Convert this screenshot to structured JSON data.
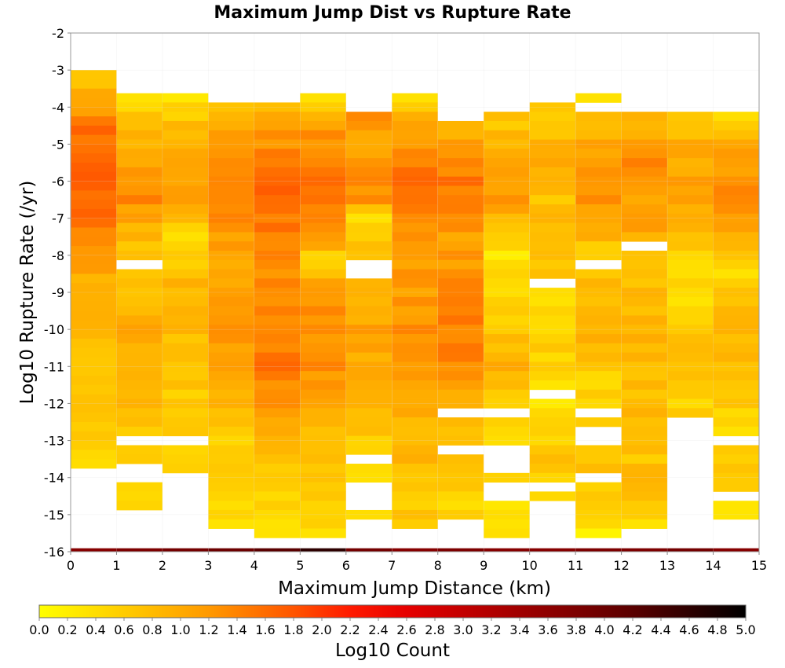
{
  "chart_data": {
    "type": "heatmap",
    "title": "Maximum Jump Dist vs Rupture Rate",
    "xlabel": "Maximum Jump Distance (km)",
    "ylabel": "Log10 Rupture Rate (/yr)",
    "colorbar_label": "Log10 Count",
    "xlim": [
      0,
      15
    ],
    "ylim": [
      -16,
      -2
    ],
    "clim": [
      0,
      5
    ],
    "x_ticks": [
      "0",
      "1",
      "2",
      "3",
      "4",
      "5",
      "6",
      "7",
      "8",
      "9",
      "10",
      "11",
      "12",
      "13",
      "14",
      "15"
    ],
    "y_ticks": [
      "-2",
      "-3",
      "-4",
      "-5",
      "-6",
      "-7",
      "-8",
      "-9",
      "-10",
      "-11",
      "-12",
      "-13",
      "-14",
      "-15",
      "-16"
    ],
    "colorbar_ticks": [
      "0.0",
      "0.2",
      "0.4",
      "0.6",
      "0.8",
      "1.0",
      "1.2",
      "1.4",
      "1.6",
      "1.8",
      "2.0",
      "2.2",
      "2.4",
      "2.6",
      "2.8",
      "3.0",
      "3.2",
      "3.4",
      "3.6",
      "3.8",
      "4.0",
      "4.2",
      "4.4",
      "4.6",
      "4.8",
      "5.0"
    ],
    "colormap": [
      {
        "v": 0.0,
        "color": "#ffff00"
      },
      {
        "v": 0.6,
        "color": "#ffcc00"
      },
      {
        "v": 1.2,
        "color": "#ff9900"
      },
      {
        "v": 1.8,
        "color": "#ff5500"
      },
      {
        "v": 2.2,
        "color": "#ff1a00"
      },
      {
        "v": 2.6,
        "color": "#e60000"
      },
      {
        "v": 3.4,
        "color": "#a00000"
      },
      {
        "v": 4.2,
        "color": "#5a0000"
      },
      {
        "v": 5.0,
        "color": "#000000"
      }
    ],
    "x_bin_width": 1,
    "y_bin_height": 0.25,
    "y_bottom": -16,
    "bottom_row": {
      "y": -15.95,
      "values": [
        3.7,
        3.8,
        3.9,
        4.0,
        4.2,
        4.6,
        3.9,
        3.7,
        3.8,
        3.7,
        3.7,
        3.8,
        3.8,
        3.9,
        3.7
      ]
    },
    "columns": [
      {
        "top": -3.0,
        "bottom": -13.625,
        "holes": [
          [
            -14.5,
            -16.0
          ]
        ],
        "profile": [
          [
            -3.0,
            0.6
          ],
          [
            -4.5,
            1.5
          ],
          [
            -5.5,
            1.8
          ],
          [
            -7.0,
            1.5
          ],
          [
            -8.5,
            1.0
          ],
          [
            -10.0,
            0.8
          ],
          [
            -12.0,
            0.7
          ],
          [
            -13.5,
            0.6
          ],
          [
            -14.5,
            0.4
          ]
        ]
      },
      {
        "top": -3.625,
        "bottom": -14.875,
        "holes": [
          [
            -8.125,
            -8.375
          ],
          [
            -12.875,
            -13.125
          ],
          [
            -13.625,
            -14.125
          ],
          [
            -15.0,
            -16.0
          ]
        ],
        "profile": [
          [
            -3.6,
            0.3
          ],
          [
            -5.0,
            0.9
          ],
          [
            -6.5,
            1.3
          ],
          [
            -8.0,
            0.6
          ],
          [
            -10.0,
            1.0
          ],
          [
            -12.0,
            0.8
          ],
          [
            -14.0,
            0.4
          ],
          [
            -15.0,
            0.5
          ]
        ]
      },
      {
        "top": -3.625,
        "bottom": -13.875,
        "holes": [
          [
            -12.875,
            -13.125
          ],
          [
            -13.875,
            -16.0
          ]
        ],
        "profile": [
          [
            -3.6,
            0.3
          ],
          [
            -5.0,
            1.0
          ],
          [
            -6.5,
            1.2
          ],
          [
            -7.5,
            0.5
          ],
          [
            -9.0,
            0.9
          ],
          [
            -11.0,
            0.6
          ],
          [
            -12.5,
            0.7
          ],
          [
            -13.8,
            0.4
          ]
        ]
      },
      {
        "top": -3.875,
        "bottom": -15.375,
        "holes": [
          [
            -15.375,
            -16.0
          ]
        ],
        "profile": [
          [
            -3.9,
            0.8
          ],
          [
            -5.0,
            1.2
          ],
          [
            -6.5,
            1.5
          ],
          [
            -8.0,
            1.0
          ],
          [
            -10.0,
            1.2
          ],
          [
            -11.5,
            1.1
          ],
          [
            -13.0,
            0.5
          ],
          [
            -14.5,
            0.5
          ],
          [
            -15.3,
            0.4
          ]
        ]
      },
      {
        "top": -3.875,
        "bottom": -15.625,
        "holes": [
          [
            -15.625,
            -16.0
          ]
        ],
        "profile": [
          [
            -3.9,
            0.7
          ],
          [
            -5.0,
            1.3
          ],
          [
            -6.0,
            1.7
          ],
          [
            -7.5,
            1.4
          ],
          [
            -9.0,
            1.3
          ],
          [
            -11.0,
            1.5
          ],
          [
            -12.5,
            1.0
          ],
          [
            -14.0,
            0.6
          ],
          [
            -15.5,
            0.3
          ]
        ]
      },
      {
        "top": -3.625,
        "bottom": -15.875,
        "holes": [],
        "profile": [
          [
            -3.6,
            0.2
          ],
          [
            -4.5,
            1.1
          ],
          [
            -6.0,
            1.7
          ],
          [
            -7.5,
            1.2
          ],
          [
            -8.2,
            0.4
          ],
          [
            -9.0,
            1.2
          ],
          [
            -11.0,
            1.3
          ],
          [
            -12.5,
            0.8
          ],
          [
            -14.5,
            0.7
          ],
          [
            -15.8,
            0.3
          ]
        ]
      },
      {
        "top": -3.875,
        "bottom": -15.875,
        "holes": [
          [
            -4.0,
            -4.125
          ],
          [
            -8.125,
            -8.625
          ],
          [
            -13.5,
            -13.625
          ],
          [
            -14.125,
            -14.875
          ],
          [
            -15.125,
            -15.625
          ]
        ],
        "profile": [
          [
            -3.9,
            1.3
          ],
          [
            -5.0,
            1.1
          ],
          [
            -6.5,
            1.3
          ],
          [
            -7.0,
            0.3
          ],
          [
            -8.0,
            0.8
          ],
          [
            -10.0,
            1.1
          ],
          [
            -12.0,
            0.8
          ],
          [
            -13.0,
            0.6
          ],
          [
            -14.0,
            0.5
          ],
          [
            -15.0,
            0.5
          ],
          [
            -15.8,
            0.4
          ]
        ]
      },
      {
        "top": -3.625,
        "bottom": -15.875,
        "holes": [
          [
            -15.375,
            -15.625
          ]
        ],
        "profile": [
          [
            -3.6,
            0.2
          ],
          [
            -4.5,
            1.0
          ],
          [
            -6.0,
            1.6
          ],
          [
            -7.5,
            1.2
          ],
          [
            -9.0,
            1.1
          ],
          [
            -10.5,
            1.4
          ],
          [
            -12.0,
            1.0
          ],
          [
            -13.5,
            0.8
          ],
          [
            -15.0,
            0.6
          ],
          [
            -15.8,
            0.4
          ]
        ]
      },
      {
        "top": -4.375,
        "bottom": -15.125,
        "holes": [
          [
            -12.125,
            -12.375
          ],
          [
            -13.125,
            -13.375
          ],
          [
            -15.125,
            -16.0
          ]
        ],
        "profile": [
          [
            -4.4,
            0.9
          ],
          [
            -6.0,
            1.5
          ],
          [
            -7.5,
            1.1
          ],
          [
            -9.0,
            1.3
          ],
          [
            -10.5,
            1.5
          ],
          [
            -12.0,
            0.9
          ],
          [
            -13.5,
            0.6
          ],
          [
            -15.0,
            0.5
          ]
        ]
      },
      {
        "top": -4.125,
        "bottom": -15.875,
        "holes": [
          [
            -12.125,
            -12.375
          ],
          [
            -13.125,
            -13.875
          ],
          [
            -14.125,
            -14.625
          ]
        ],
        "profile": [
          [
            -4.1,
            0.6
          ],
          [
            -5.5,
            1.0
          ],
          [
            -6.5,
            1.2
          ],
          [
            -8.0,
            0.3
          ],
          [
            -9.0,
            0.5
          ],
          [
            -11.0,
            0.9
          ],
          [
            -12.5,
            0.4
          ],
          [
            -14.0,
            0.4
          ],
          [
            -15.0,
            0.4
          ],
          [
            -15.8,
            0.2
          ]
        ]
      },
      {
        "top": -3.875,
        "bottom": -14.625,
        "holes": [
          [
            -8.625,
            -8.875
          ],
          [
            -11.625,
            -11.875
          ],
          [
            -14.125,
            -14.375
          ],
          [
            -14.625,
            -16.0
          ]
        ],
        "profile": [
          [
            -3.9,
            0.5
          ],
          [
            -5.5,
            1.0
          ],
          [
            -6.5,
            0.7
          ],
          [
            -7.5,
            0.9
          ],
          [
            -9.0,
            0.5
          ],
          [
            -10.5,
            0.6
          ],
          [
            -12.0,
            0.4
          ],
          [
            -13.5,
            0.7
          ],
          [
            -14.5,
            0.5
          ]
        ]
      },
      {
        "top": -3.625,
        "bottom": -15.375,
        "holes": [
          [
            -3.875,
            -4.0
          ],
          [
            -8.125,
            -8.375
          ],
          [
            -12.125,
            -12.375
          ],
          [
            -12.625,
            -13.125
          ],
          [
            -13.875,
            -14.125
          ]
        ],
        "profile": [
          [
            -3.6,
            0.4
          ],
          [
            -5.0,
            1.0
          ],
          [
            -6.5,
            1.3
          ],
          [
            -8.0,
            0.6
          ],
          [
            -10.0,
            1.0
          ],
          [
            -11.5,
            0.5
          ],
          [
            -12.5,
            0.7
          ],
          [
            -14.5,
            0.6
          ],
          [
            -15.3,
            0.3
          ]
        ]
      },
      {
        "top": -4.125,
        "bottom": -15.625,
        "holes": [
          [
            -7.625,
            -7.875
          ],
          [
            -15.375,
            -15.625
          ]
        ],
        "profile": [
          [
            -4.1,
            0.8
          ],
          [
            -5.5,
            1.3
          ],
          [
            -7.0,
            1.1
          ],
          [
            -8.5,
            0.7
          ],
          [
            -10.0,
            0.9
          ],
          [
            -12.0,
            0.8
          ],
          [
            -13.5,
            0.7
          ],
          [
            -14.5,
            0.8
          ],
          [
            -15.2,
            0.5
          ]
        ]
      },
      {
        "top": -4.125,
        "bottom": -12.375,
        "holes": [
          [
            -12.375,
            -16.0
          ]
        ],
        "profile": [
          [
            -4.1,
            0.6
          ],
          [
            -5.0,
            0.9
          ],
          [
            -6.5,
            1.2
          ],
          [
            -7.5,
            0.7
          ],
          [
            -9.0,
            0.4
          ],
          [
            -10.5,
            0.8
          ],
          [
            -12.0,
            0.5
          ]
        ]
      },
      {
        "top": -4.125,
        "bottom": -15.875,
        "holes": [
          [
            -12.875,
            -13.125
          ],
          [
            -14.375,
            -14.625
          ],
          [
            -15.125,
            -15.625
          ]
        ],
        "profile": [
          [
            -4.1,
            0.2
          ],
          [
            -5.0,
            1.0
          ],
          [
            -6.5,
            1.3
          ],
          [
            -7.5,
            0.9
          ],
          [
            -8.5,
            0.5
          ],
          [
            -10.0,
            0.8
          ],
          [
            -11.5,
            0.7
          ],
          [
            -12.5,
            0.5
          ],
          [
            -14.0,
            0.6
          ],
          [
            -15.0,
            0.4
          ],
          [
            -15.8,
            0.4
          ]
        ]
      }
    ]
  }
}
